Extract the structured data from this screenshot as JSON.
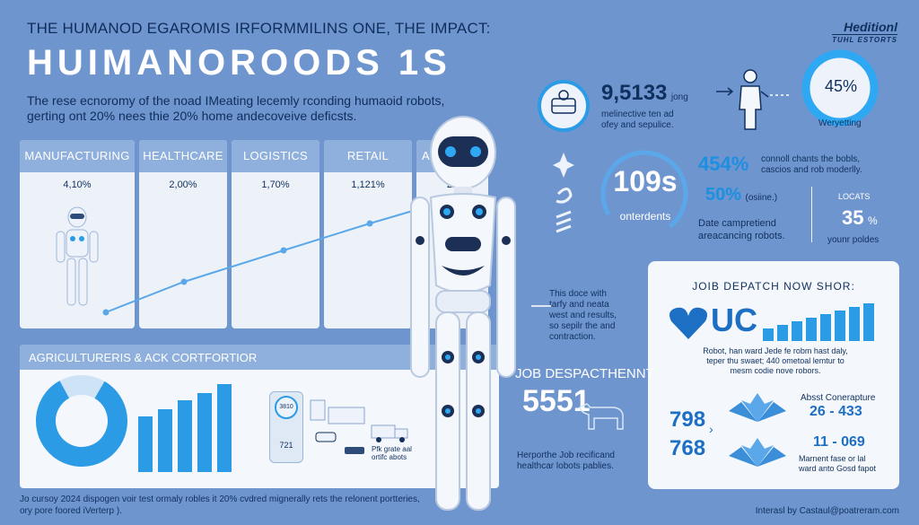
{
  "header": {
    "headline": "THE HUMANOD EGAROMIS IRFORMMILINS ONE, THE IMPACT:",
    "title": "HUIMANOROODS  1S",
    "intro_line1": "The rese ecnoromy of the noad IMeating lecemly rconding humaoid robots,",
    "intro_line2": "gerting ont 20% nees thie 20% home andecoveive deficsts."
  },
  "brand": {
    "name": "Heditionl",
    "tagline": "TUHL ESTORTS"
  },
  "sectors": [
    {
      "label": "MANUFACTURING",
      "value": "4,10%"
    },
    {
      "label": "HEALTHCARE",
      "value": "2,00%"
    },
    {
      "label": "LOGISTICS",
      "value": "1,70%"
    },
    {
      "label": "RETAIL",
      "value": "1,121%"
    },
    {
      "label": "AG",
      "value": "25"
    }
  ],
  "agri": {
    "title": "AGRICULTURERIS & ACK CORTFORTIOR",
    "badge_top": "3810",
    "badge_bottom": "721",
    "caption_line1": "Pfk grate aal",
    "caption_line2": "ortifc abots"
  },
  "stats": {
    "big_number": "9,5133",
    "big_unit": "jong",
    "big_desc_line1": "melinective ten ad",
    "big_desc_line2": "ofey and sepulice.",
    "ring_value": "45%",
    "ring_label": "Weryetting",
    "center_value": "109s",
    "center_label": "onterdents",
    "pct1": "454%",
    "pct1_desc_line1": "connoll chants the bobls,",
    "pct1_desc_line2": "cascios and rob moderlly.",
    "pct2": "50%",
    "pct2_note": "(osiine.)",
    "pct2_desc_line1": "Date campretiend",
    "pct2_desc_line2": "areacancing robots.",
    "locats_label": "LOCATS",
    "locats_value": "35",
    "locats_unit": "%",
    "locats_desc": "younr poldes"
  },
  "middle_note": {
    "line1": "This doce with",
    "line2": "tarfy and neata",
    "line3": "west and results,",
    "line4": "so sepilr the and",
    "line5": "contraction."
  },
  "job_dispatch": {
    "title": "JOB DESPACTHENNT",
    "number": "5551",
    "desc_line1": "Herporthe Job recificand",
    "desc_line2": "healthcar lobots pablies."
  },
  "dispatch_panel": {
    "title": "JOIB DEPATCH NOW SHOR:",
    "logo_text": "UC",
    "desc_line1": "Robot, han ward Jede fe robm hast daly,",
    "desc_line2": "teper thu swaet; 440 ometoal lemtur to",
    "desc_line3": "mesm codie nove robors.",
    "num1": "798",
    "num2": "768",
    "right_label": "Absst Conerapture",
    "range1": "26 - 433",
    "range2": "11 - 069",
    "right_desc_line1": "Marnent fase or lal",
    "right_desc_line2": "ward anto Gosd fapot"
  },
  "footer": {
    "line1": "Jo cursoy 2024 dispogen voir test ormaly robles it 20% cvdred mignerally rets the relonent portteries,",
    "line2": "ory pore foored iVerterp ).",
    "credit": "Interasl by Castaul@poatreram.com"
  },
  "colors": {
    "background": "#6f95cf",
    "navy": "#10305e",
    "accent_blue": "#1d8fe0",
    "header_band": "#8fb0dc"
  }
}
